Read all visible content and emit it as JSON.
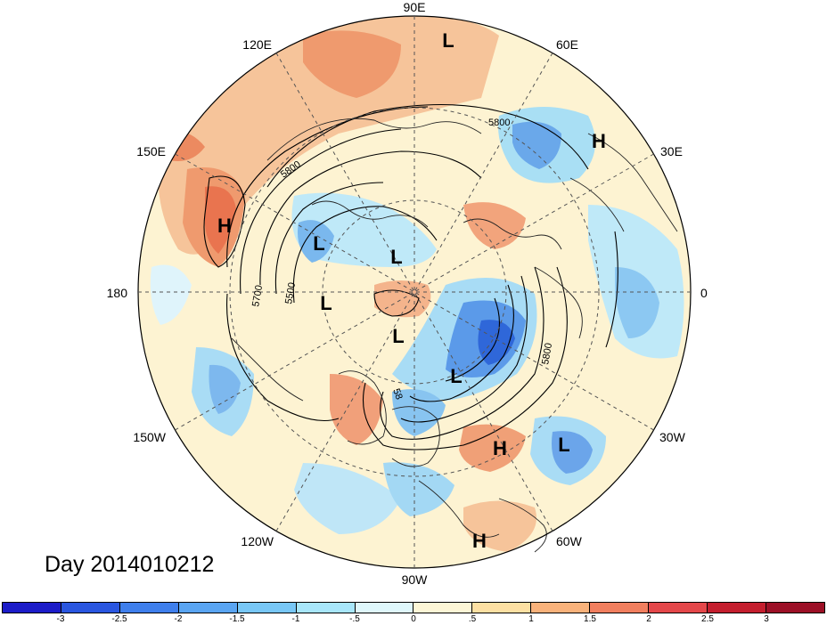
{
  "title": "Day 2014010212",
  "longitude_labels": {
    "lon_90E": "90E",
    "lon_60E": "60E",
    "lon_30E": "30E",
    "lon_0": "0",
    "lon_30W": "30W",
    "lon_60W": "60W",
    "lon_90W": "90W",
    "lon_120W": "120W",
    "lon_150W": "150W",
    "lon_180": "180",
    "lon_150E": "150E",
    "lon_120E": "120E"
  },
  "pressure_centers": [
    {
      "type": "L",
      "label": "L"
    },
    {
      "type": "H",
      "label": "H"
    },
    {
      "type": "H",
      "label": "H"
    },
    {
      "type": "L",
      "label": "L"
    },
    {
      "type": "L",
      "label": "L"
    },
    {
      "type": "L",
      "label": "L"
    },
    {
      "type": "L",
      "label": "L"
    },
    {
      "type": "L",
      "label": "L"
    },
    {
      "type": "H",
      "label": "H"
    },
    {
      "type": "L",
      "label": "L"
    },
    {
      "type": "H",
      "label": "H"
    }
  ],
  "contour_labels": {
    "c5800_top": "5800",
    "c5800_left": "5800",
    "c5700": "5700",
    "c5500": "5500",
    "c5800_right": "5800",
    "c58_inner": "58"
  },
  "colorbar": {
    "colors": [
      "#1c1cc8",
      "#2a56e0",
      "#3f7fec",
      "#5aa5f2",
      "#78c7f6",
      "#a8e6fa",
      "#dff7fb",
      "#fdf6d6",
      "#fde0a3",
      "#f9b27b",
      "#f17f5f",
      "#e4474a",
      "#c41e2e",
      "#9c1026"
    ],
    "ticks": [
      "-3",
      "-2.5",
      "-2",
      "-1.5",
      "-1",
      "-.5",
      "0",
      ".5",
      "1",
      "1.5",
      "2",
      "2.5",
      "3"
    ]
  },
  "colors": {
    "warm": "#f6b98b",
    "warm_strong": "#ef8a63",
    "cool": "#a8dff6",
    "cool_strong": "#4f96e8",
    "cool_deep": "#2c5fd6",
    "neutral_warm": "#fdf0c8",
    "neutral_cool": "#def5fb"
  }
}
